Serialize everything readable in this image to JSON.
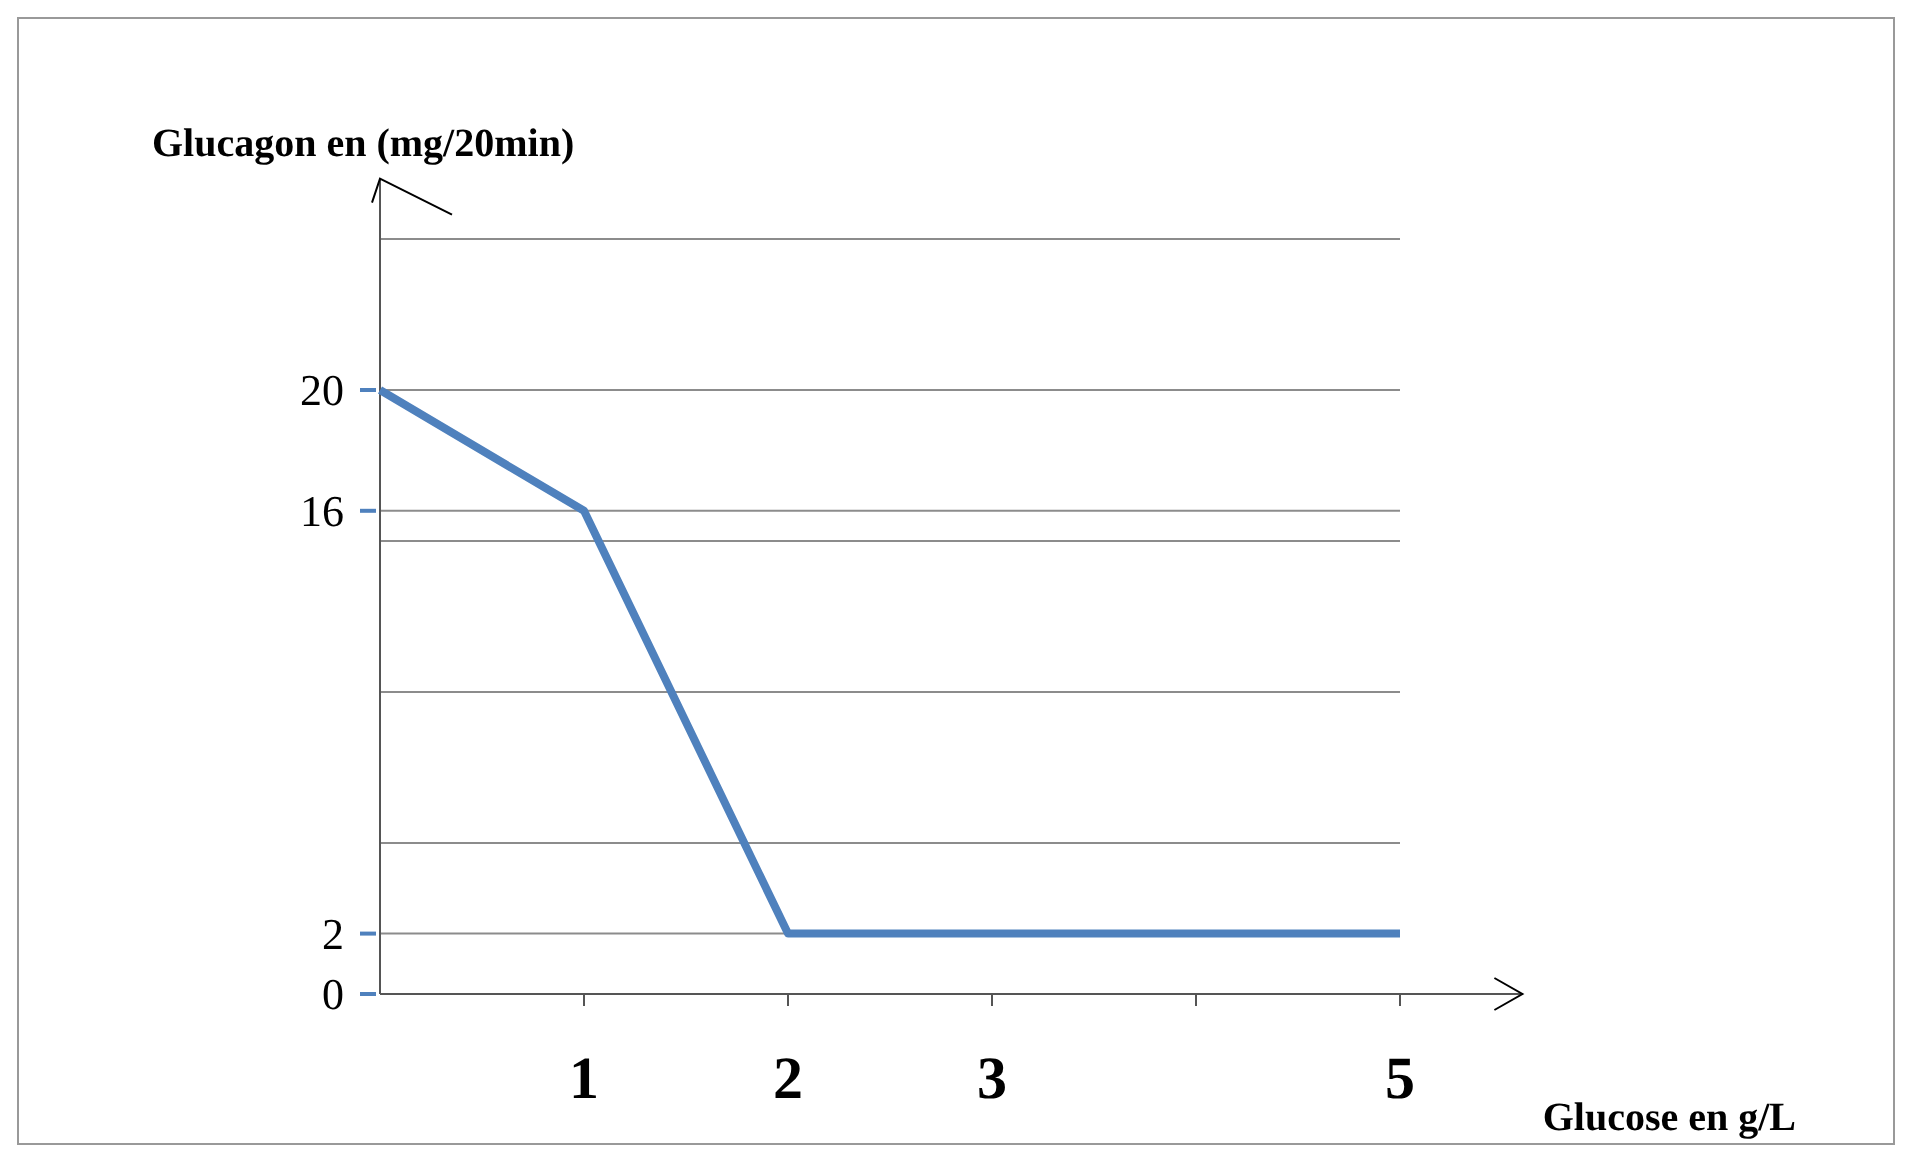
{
  "chart_data": {
    "type": "line",
    "xlabel": "Glucose en g/L",
    "ylabel": "Glucagon en (mg/20min)",
    "x": [
      0,
      1,
      2,
      5
    ],
    "series": [
      {
        "color": "#4f81bd",
        "values": [
          20,
          16,
          2,
          2
        ]
      }
    ],
    "xlim": [
      0,
      5.6
    ],
    "xticks": [
      1,
      2,
      3,
      {
        "value": 4,
        "label": null
      },
      5
    ],
    "ylim": [
      0,
      27
    ],
    "yticks": [
      0,
      2,
      {
        "value": 5,
        "label": null
      },
      {
        "value": 10,
        "label": null
      },
      {
        "value": 15,
        "label": null
      },
      16,
      20,
      {
        "value": 25,
        "label": null
      }
    ],
    "grid": "y",
    "marker": "none",
    "line_style": "solid"
  }
}
